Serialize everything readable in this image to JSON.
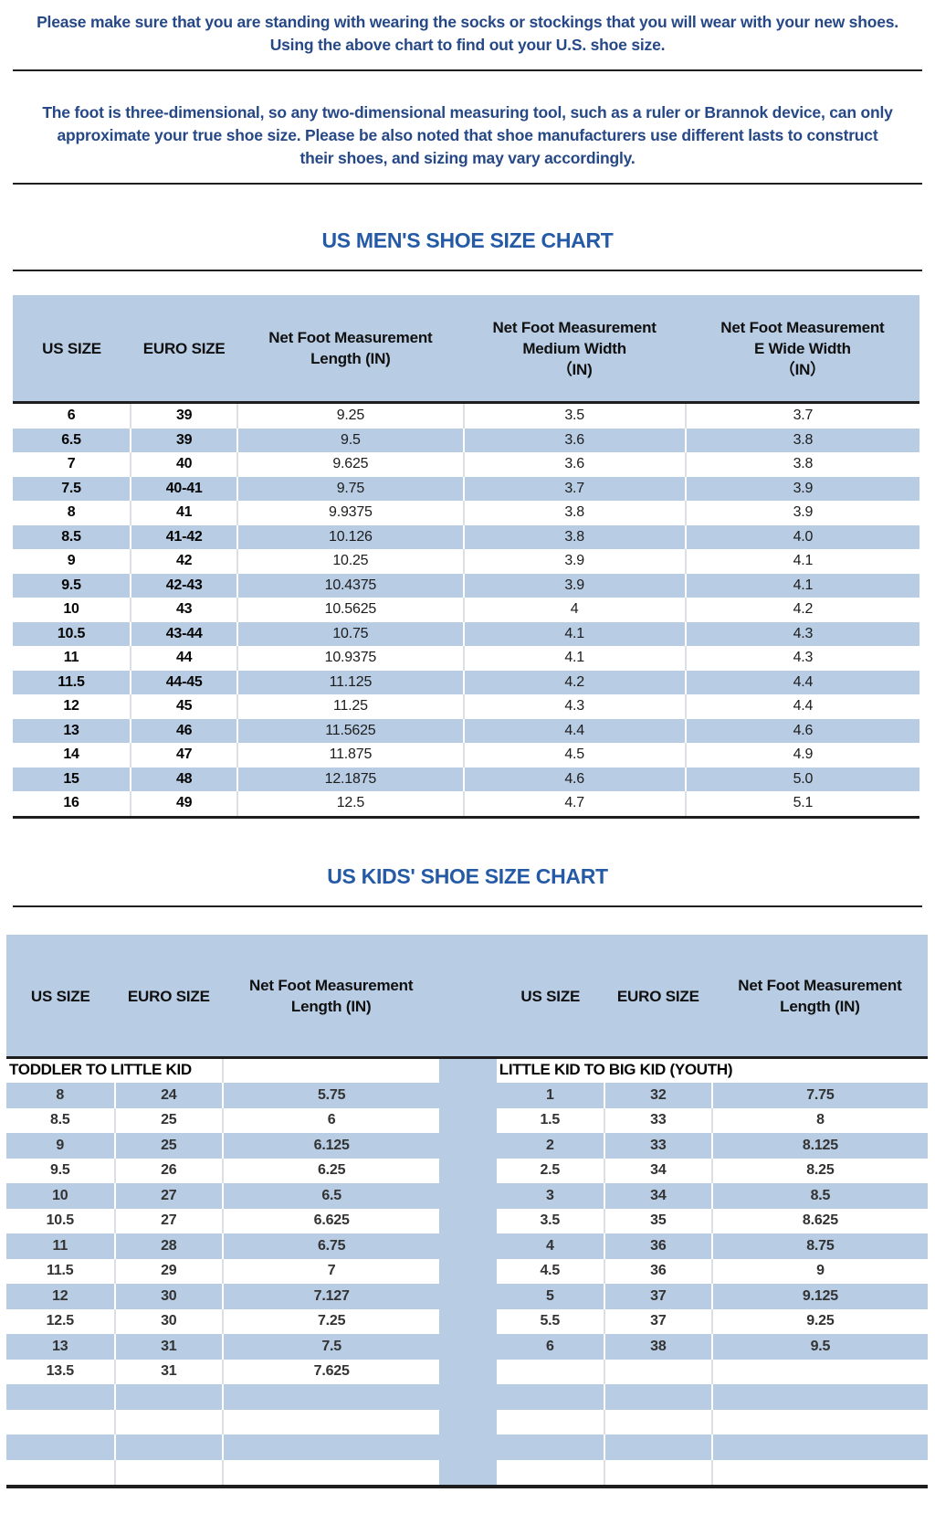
{
  "intro": {
    "line1": "Please make sure that you are standing with wearing the socks or stockings that you will wear with your new shoes.",
    "line2": "Using the above chart to find out your U.S. shoe size."
  },
  "note": {
    "text": "The foot is three-dimensional, so any two-dimensional measuring tool, such as a ruler or Brannok device, can only approximate your true shoe size. Please be also noted that shoe manufacturers use different lasts to construct their shoes, and sizing may vary accordingly."
  },
  "mens": {
    "title": "US MEN'S SHOE SIZE CHART",
    "columns": [
      "US SIZE",
      "EURO SIZE",
      "Net Foot Measurement\nLength (IN)",
      "Net Foot Measurement\nMedium Width\n（IN)",
      "Net Foot Measurement\nE Wide Width\n（IN）"
    ],
    "rows": [
      [
        "6",
        "39",
        "9.25",
        "3.5",
        "3.7"
      ],
      [
        "6.5",
        "39",
        "9.5",
        "3.6",
        "3.8"
      ],
      [
        "7",
        "40",
        "9.625",
        "3.6",
        "3.8"
      ],
      [
        "7.5",
        "40-41",
        "9.75",
        "3.7",
        "3.9"
      ],
      [
        "8",
        "41",
        "9.9375",
        "3.8",
        "3.9"
      ],
      [
        "8.5",
        "41-42",
        "10.126",
        "3.8",
        "4.0"
      ],
      [
        "9",
        "42",
        "10.25",
        "3.9",
        "4.1"
      ],
      [
        "9.5",
        "42-43",
        "10.4375",
        "3.9",
        "4.1"
      ],
      [
        "10",
        "43",
        "10.5625",
        "4",
        "4.2"
      ],
      [
        "10.5",
        "43-44",
        "10.75",
        "4.1",
        "4.3"
      ],
      [
        "11",
        "44",
        "10.9375",
        "4.1",
        "4.3"
      ],
      [
        "11.5",
        "44-45",
        "11.125",
        "4.2",
        "4.4"
      ],
      [
        "12",
        "45",
        "11.25",
        "4.3",
        "4.4"
      ],
      [
        "13",
        "46",
        "11.5625",
        "4.4",
        "4.6"
      ],
      [
        "14",
        "47",
        "11.875",
        "4.5",
        "4.9"
      ],
      [
        "15",
        "48",
        "12.1875",
        "4.6",
        "5.0"
      ],
      [
        "16",
        "49",
        "12.5",
        "4.7",
        "5.1"
      ]
    ]
  },
  "kids": {
    "title": "US KIDS' SHOE SIZE CHART",
    "left": {
      "section": "TODDLER TO LITTLE KID",
      "columns": [
        "US SIZE",
        "EURO SIZE",
        "Net Foot Measurement\nLength (IN)"
      ],
      "rows": [
        [
          "8",
          "24",
          "5.75"
        ],
        [
          "8.5",
          "25",
          "6"
        ],
        [
          "9",
          "25",
          "6.125"
        ],
        [
          "9.5",
          "26",
          "6.25"
        ],
        [
          "10",
          "27",
          "6.5"
        ],
        [
          "10.5",
          "27",
          "6.625"
        ],
        [
          "11",
          "28",
          "6.75"
        ],
        [
          "11.5",
          "29",
          "7"
        ],
        [
          "12",
          "30",
          "7.127"
        ],
        [
          "12.5",
          "30",
          "7.25"
        ],
        [
          "13",
          "31",
          "7.5"
        ],
        [
          "13.5",
          "31",
          "7.625"
        ],
        [
          "",
          "",
          ""
        ],
        [
          "",
          "",
          ""
        ],
        [
          "",
          "",
          ""
        ],
        [
          "",
          "",
          ""
        ]
      ]
    },
    "right": {
      "section": "LITTLE KID TO BIG KID (YOUTH)",
      "columns": [
        "US SIZE",
        "EURO SIZE",
        "Net Foot Measurement\nLength (IN)"
      ],
      "rows": [
        [
          "1",
          "32",
          "7.75"
        ],
        [
          "1.5",
          "33",
          "8"
        ],
        [
          "2",
          "33",
          "8.125"
        ],
        [
          "2.5",
          "34",
          "8.25"
        ],
        [
          "3",
          "34",
          "8.5"
        ],
        [
          "3.5",
          "35",
          "8.625"
        ],
        [
          "4",
          "36",
          "8.75"
        ],
        [
          "4.5",
          "36",
          "9"
        ],
        [
          "5",
          "37",
          "9.125"
        ],
        [
          "5.5",
          "37",
          "9.25"
        ],
        [
          "6",
          "38",
          "9.5"
        ],
        [
          "",
          "",
          ""
        ],
        [
          "",
          "",
          ""
        ],
        [
          "",
          "",
          ""
        ],
        [
          "",
          "",
          ""
        ],
        [
          "",
          "",
          ""
        ]
      ]
    }
  },
  "colors": {
    "row_blue": "#b8cce4",
    "title_blue": "#255aa6",
    "paragraph_blue": "#264887",
    "line_dark": "#1e1e1e"
  }
}
